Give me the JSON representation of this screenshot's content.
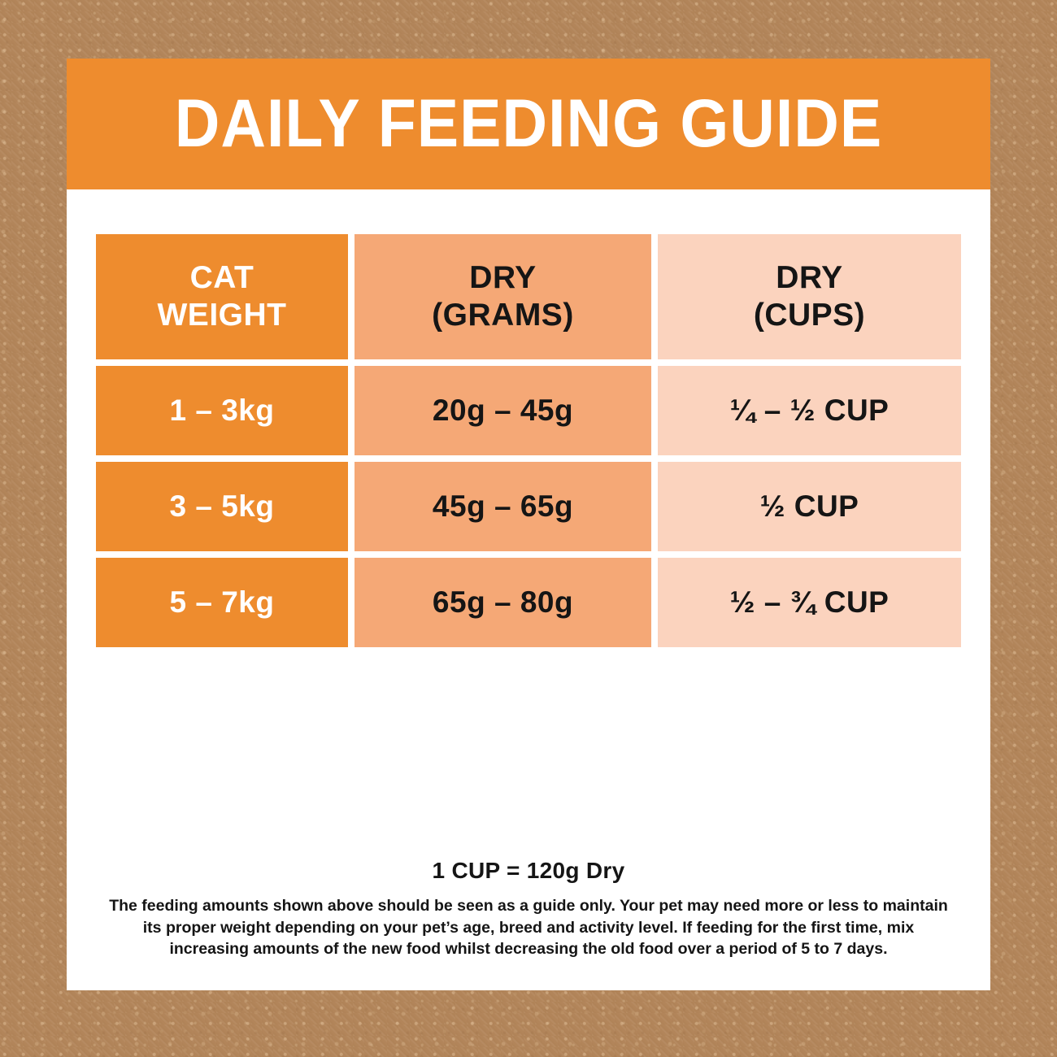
{
  "header": {
    "title": "DAILY FEEDING GUIDE"
  },
  "table": {
    "columns": [
      {
        "id": "cat_weight",
        "label": "CAT\nWEIGHT"
      },
      {
        "id": "dry_grams",
        "label": "DRY\n(GRAMS)"
      },
      {
        "id": "dry_cups",
        "label": "DRY\n(CUPS)"
      }
    ],
    "rows": [
      {
        "cat_weight": "1 – 3kg",
        "dry_grams": "20g – 45g",
        "dry_cups": "¼ – ½ CUP"
      },
      {
        "cat_weight": "3 – 5kg",
        "dry_grams": "45g – 65g",
        "dry_cups": "½ CUP"
      },
      {
        "cat_weight": "5 – 7kg",
        "dry_grams": "65g – 80g",
        "dry_cups": "½ – ¾ CUP"
      }
    ]
  },
  "footer": {
    "cup_note": "1 CUP = 120g Dry",
    "disclaimer": "The feeding amounts shown above should be seen as a guide only. Your pet may need more or less to maintain its proper weight depending on your pet’s age, breed and activity level. If feeding for the first time, mix increasing amounts of the new food whilst decreasing the old food over a period of 5 to 7 days."
  },
  "colors": {
    "background_brown": "#B2855A",
    "accent_orange": "#EE8C2E",
    "mid_peach": "#F5A876",
    "light_peach": "#FBD3BE",
    "card_white": "#FFFFFF",
    "text_dark": "#151515"
  }
}
